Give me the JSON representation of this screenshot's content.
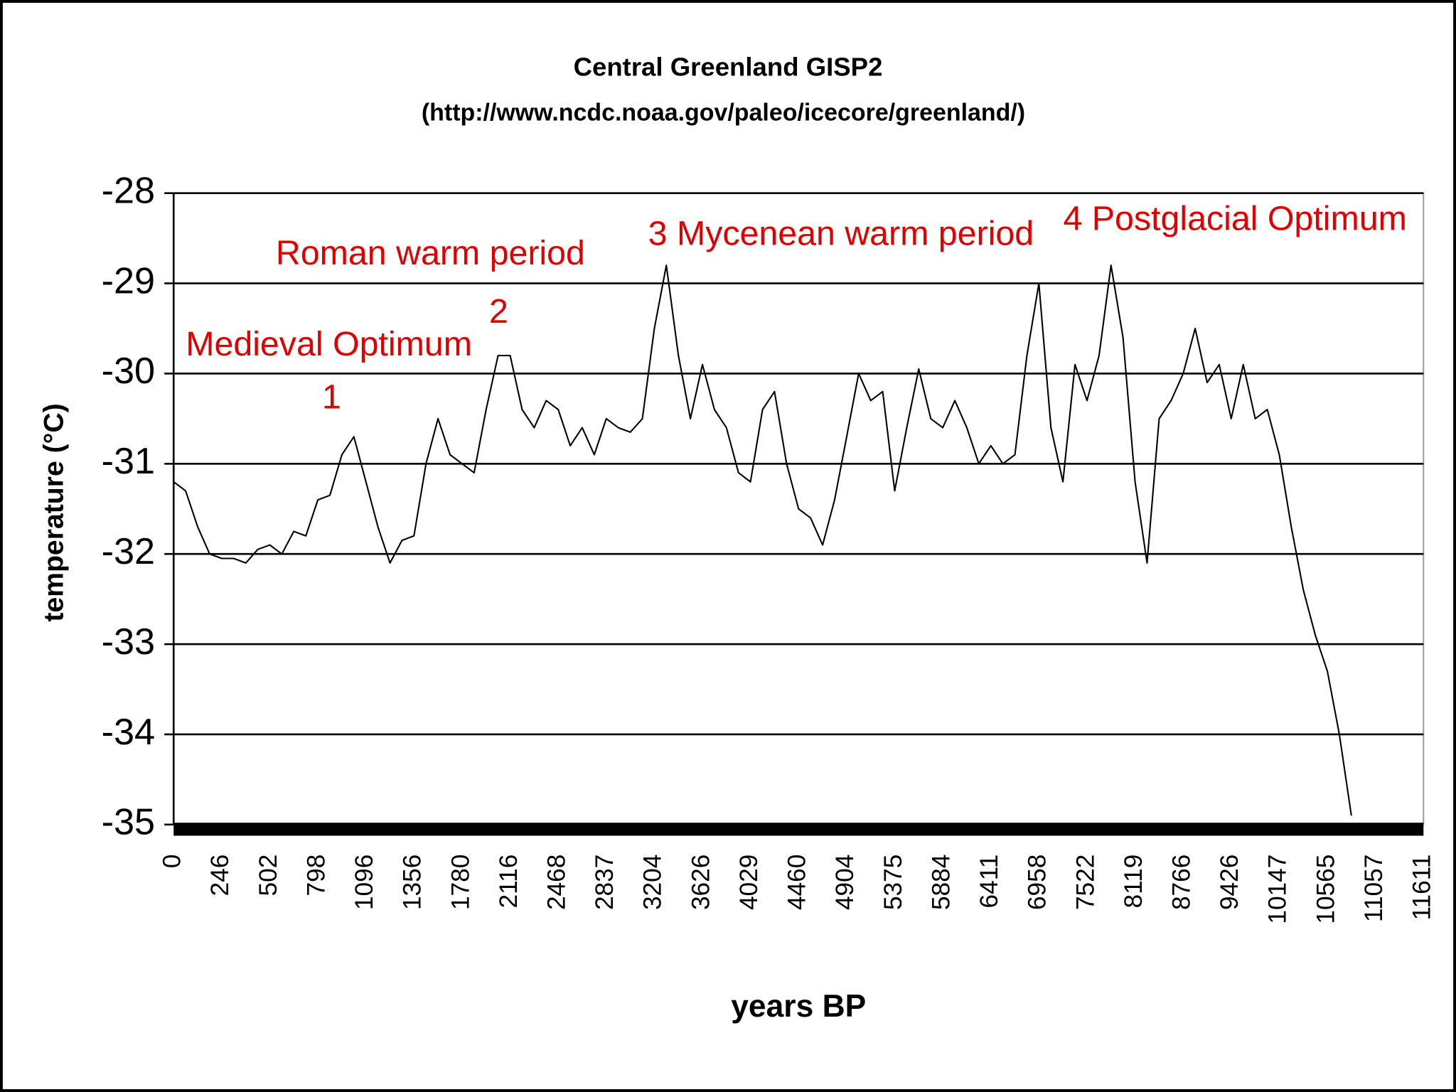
{
  "chart_data": {
    "type": "line",
    "title": "Central Greenland GISP2",
    "subtitle": "(http://www.ncdc.noaa.gov/paleo/icecore/greenland/)",
    "x_label": "years BP",
    "y_label": "temperature (°C)",
    "annotations": [
      "Medieval Optimum",
      "1",
      "Roman warm period",
      "2",
      "3 Mycenean warm period",
      "4 Postglacial Optimum"
    ],
    "categories": [
      "0",
      null,
      null,
      null,
      "246",
      null,
      null,
      null,
      "502",
      null,
      null,
      null,
      "798",
      null,
      null,
      null,
      "1096",
      null,
      null,
      null,
      "1356",
      null,
      null,
      null,
      "1780",
      null,
      null,
      null,
      "2116",
      null,
      null,
      null,
      "2468",
      null,
      null,
      null,
      "2837",
      null,
      null,
      null,
      "3204",
      null,
      null,
      null,
      "3626",
      null,
      null,
      null,
      "4029",
      null,
      null,
      null,
      "4460",
      null,
      null,
      null,
      "4904",
      null,
      null,
      null,
      "5375",
      null,
      null,
      null,
      "5884",
      null,
      null,
      null,
      "6411",
      null,
      null,
      null,
      "6958",
      null,
      null,
      null,
      "7522",
      null,
      null,
      null,
      "8119",
      null,
      null,
      null,
      "8766",
      null,
      null,
      null,
      "9426",
      null,
      null,
      null,
      "10147",
      null,
      null,
      null,
      "10565",
      null,
      null,
      null,
      "11057",
      null,
      null,
      null,
      "11611"
    ],
    "series": [
      {
        "name": "temperature",
        "color": "#000000",
        "values": [
          -31.2,
          -31.3,
          -31.7,
          -32.0,
          -32.05,
          -32.05,
          -32.1,
          -31.95,
          -31.9,
          -32.0,
          -31.75,
          -31.8,
          -31.4,
          -31.35,
          -30.9,
          -30.7,
          -31.2,
          -31.7,
          -32.1,
          -31.85,
          -31.8,
          -31.0,
          -30.5,
          -30.9,
          -31.0,
          -31.1,
          -30.4,
          -29.8,
          -29.8,
          -30.4,
          -30.6,
          -30.3,
          -30.4,
          -30.8,
          -30.6,
          -30.9,
          -30.5,
          -30.6,
          -30.65,
          -30.5,
          -29.5,
          -28.8,
          -29.8,
          -30.5,
          -29.9,
          -30.4,
          -30.6,
          -31.1,
          -31.2,
          -30.4,
          -30.2,
          -31.0,
          -31.5,
          -31.6,
          -31.9,
          -31.4,
          -30.7,
          -30.0,
          -30.3,
          -30.2,
          -31.3,
          -30.6,
          -29.95,
          -30.5,
          -30.6,
          -30.3,
          -30.6,
          -31.0,
          -30.8,
          -31.0,
          -30.9,
          -29.8,
          -29.0,
          -30.6,
          -31.2,
          -29.9,
          -30.3,
          -29.8,
          -28.8,
          -29.6,
          -31.2,
          -32.1,
          -30.5,
          -30.3,
          -30.0,
          -29.5,
          -30.1,
          -29.9,
          -30.5,
          -29.9,
          -30.5,
          -30.4,
          -30.9,
          -31.7,
          -32.4,
          -32.9,
          -33.3,
          -34.0,
          -34.9,
          null,
          null,
          null,
          null,
          null,
          null
        ]
      }
    ],
    "ylim": [
      -35,
      -28
    ],
    "yticks": [
      -35,
      -34,
      -33,
      -32,
      -31,
      -30,
      -29,
      -28
    ],
    "grid": true
  }
}
